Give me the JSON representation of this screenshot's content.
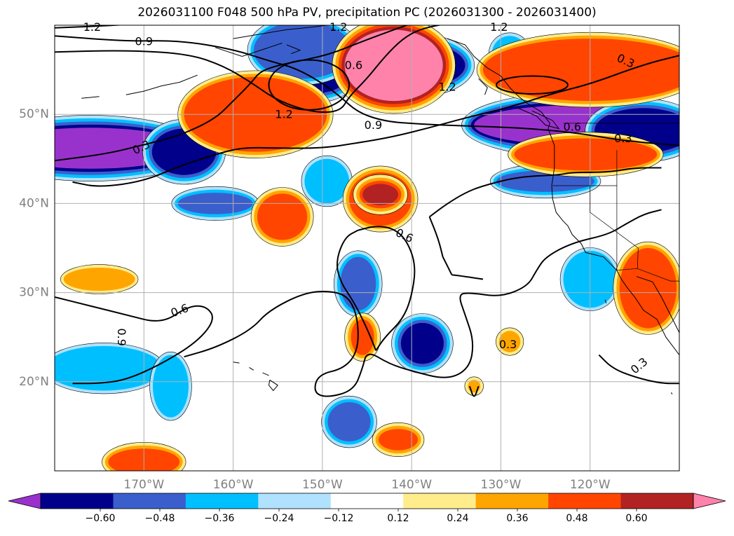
{
  "title": "2026031100 F048 500 hPa PV, precipitation PC (2026031300 - 2026031400)",
  "map": {
    "lat_range": [
      10,
      60
    ],
    "lon_range": [
      -180,
      -110
    ],
    "lat_ticks": [
      {
        "value": 50,
        "label": "50°N"
      },
      {
        "value": 40,
        "label": "40°N"
      },
      {
        "value": 30,
        "label": "30°N"
      },
      {
        "value": 20,
        "label": "20°N"
      }
    ],
    "lon_ticks": [
      {
        "value": -170,
        "label": "170°W"
      },
      {
        "value": -160,
        "label": "160°W"
      },
      {
        "value": -150,
        "label": "150°W"
      },
      {
        "value": -140,
        "label": "140°W"
      },
      {
        "value": -130,
        "label": "130°W"
      },
      {
        "value": -120,
        "label": "120°W"
      }
    ]
  },
  "contour_labels": [
    {
      "text": "1.2",
      "lon": -175.8,
      "lat": 59.8,
      "angle": 0
    },
    {
      "text": "0.9",
      "lon": -170.0,
      "lat": 58.2,
      "angle": 0
    },
    {
      "text": "0.6",
      "lon": -146.5,
      "lat": 55.5,
      "angle": 0
    },
    {
      "text": "1.2",
      "lon": -148.2,
      "lat": 59.8,
      "angle": 0
    },
    {
      "text": "1.2",
      "lon": -154.3,
      "lat": 50.0,
      "angle": 0
    },
    {
      "text": "0.9",
      "lon": -144.3,
      "lat": 48.8,
      "angle": 0
    },
    {
      "text": "1.2",
      "lon": -136.0,
      "lat": 53.1,
      "angle": 0
    },
    {
      "text": "1.2",
      "lon": -130.2,
      "lat": 59.8,
      "angle": 0
    },
    {
      "text": "0.3",
      "lon": -116.0,
      "lat": 56.0,
      "angle": 25
    },
    {
      "text": "0.6",
      "lon": -122.0,
      "lat": 48.6,
      "angle": 0
    },
    {
      "text": "0.3",
      "lon": -116.3,
      "lat": 47.3,
      "angle": 0
    },
    {
      "text": "0.3",
      "lon": -170.3,
      "lat": 46.3,
      "angle": -25
    },
    {
      "text": "0.6",
      "lon": -140.8,
      "lat": 36.4,
      "angle": 25
    },
    {
      "text": "0.6",
      "lon": -166.0,
      "lat": 28.0,
      "angle": -20
    },
    {
      "text": "0.9",
      "lon": -172.5,
      "lat": 25.0,
      "angle": 90
    },
    {
      "text": "0.3",
      "lon": -129.2,
      "lat": 24.2,
      "angle": 0
    },
    {
      "text": "0.3",
      "lon": -114.5,
      "lat": 21.8,
      "angle": -40
    }
  ],
  "precip_fill": [
    {
      "lon": -176,
      "lat": 46.2,
      "rx": 11,
      "ry": 2.3,
      "level": -0.6
    },
    {
      "lon": -165.5,
      "lat": 45.8,
      "rx": 3.6,
      "ry": 2.6,
      "level": -0.48
    },
    {
      "lon": -150.5,
      "lat": 55.2,
      "rx": 3.8,
      "ry": 2.8,
      "level": -0.48
    },
    {
      "lon": -152.2,
      "lat": 57.2,
      "rx": 5.5,
      "ry": 3.2,
      "level": -0.36
    },
    {
      "lon": -122,
      "lat": 48.8,
      "rx": 11,
      "ry": 2.2,
      "level": -0.6
    },
    {
      "lon": -114,
      "lat": 48.2,
      "rx": 5.5,
      "ry": 2.5,
      "level": -0.48
    },
    {
      "lon": -125,
      "lat": 42.5,
      "rx": 5.5,
      "ry": 1.2,
      "level": -0.36
    },
    {
      "lon": -162,
      "lat": 40.0,
      "rx": 4.2,
      "ry": 1.2,
      "level": -0.36
    },
    {
      "lon": -138.8,
      "lat": 24.3,
      "rx": 2.4,
      "ry": 2.3,
      "level": -0.48
    },
    {
      "lon": -146.0,
      "lat": 31.0,
      "rx": 2.0,
      "ry": 3.0,
      "level": -0.36
    },
    {
      "lon": -174.5,
      "lat": 21.5,
      "rx": 6.5,
      "ry": 2.5,
      "level": -0.24
    },
    {
      "lon": -167.0,
      "lat": 19.5,
      "rx": 2.0,
      "ry": 3.5,
      "level": -0.24
    },
    {
      "lon": -147.0,
      "lat": 15.5,
      "rx": 2.4,
      "ry": 2.2,
      "level": -0.36
    },
    {
      "lon": -120.0,
      "lat": 31.5,
      "rx": 3.0,
      "ry": 3.2,
      "level": -0.24
    },
    {
      "lon": -149.5,
      "lat": 42.5,
      "rx": 2.5,
      "ry": 2.5,
      "level": -0.24
    },
    {
      "lon": -139.5,
      "lat": 55.5,
      "rx": 5.5,
      "ry": 2.5,
      "level": -0.48
    },
    {
      "lon": -129.0,
      "lat": 56.8,
      "rx": 2.0,
      "ry": 2.0,
      "level": -0.24
    },
    {
      "lon": -142.0,
      "lat": 55.5,
      "rx": 5.5,
      "ry": 4.0,
      "level": 0.6
    },
    {
      "lon": -156.0,
      "lat": 48.5,
      "rx": 2.8,
      "ry": 1.8,
      "level": 0.6
    },
    {
      "lon": -157.5,
      "lat": 50.0,
      "rx": 8.0,
      "ry": 4.2,
      "level": 0.36
    },
    {
      "lon": -120.0,
      "lat": 55.0,
      "rx": 12.0,
      "ry": 3.5,
      "level": 0.36
    },
    {
      "lon": -120.5,
      "lat": 45.5,
      "rx": 8.0,
      "ry": 1.8,
      "level": 0.36
    },
    {
      "lon": -143.5,
      "lat": 40.5,
      "rx": 3.5,
      "ry": 3.0,
      "level": 0.36
    },
    {
      "lon": -143.5,
      "lat": 41.0,
      "rx": 2.0,
      "ry": 1.2,
      "level": 0.48
    },
    {
      "lon": -154.5,
      "lat": 38.5,
      "rx": 2.8,
      "ry": 2.6,
      "level": 0.36
    },
    {
      "lon": -113.5,
      "lat": 30.5,
      "rx": 3.2,
      "ry": 4.5,
      "level": 0.36
    },
    {
      "lon": -145.5,
      "lat": 25.0,
      "rx": 1.3,
      "ry": 2.0,
      "level": 0.36
    },
    {
      "lon": -141.5,
      "lat": 13.5,
      "rx": 2.2,
      "ry": 1.2,
      "level": 0.36
    },
    {
      "lon": -170.0,
      "lat": 11.0,
      "rx": 4.0,
      "ry": 1.5,
      "level": 0.36
    },
    {
      "lon": -175.0,
      "lat": 31.5,
      "rx": 4.0,
      "ry": 1.3,
      "level": 0.24
    },
    {
      "lon": -129.0,
      "lat": 24.5,
      "rx": 1.2,
      "ry": 1.2,
      "level": 0.24
    },
    {
      "lon": -133.0,
      "lat": 19.5,
      "rx": 0.7,
      "ry": 0.7,
      "level": 0.24
    }
  ],
  "colorbar": {
    "levels": [
      -0.6,
      -0.48,
      -0.36,
      -0.24,
      -0.12,
      0.12,
      0.24,
      0.36,
      0.48,
      0.6
    ],
    "labels": [
      "−0.60",
      "−0.48",
      "−0.36",
      "−0.24",
      "−0.12",
      "0.12",
      "0.24",
      "0.36",
      "0.48",
      "0.60"
    ],
    "colors": [
      "#9932CC",
      "#00008B",
      "#3A5FCD",
      "#00BFFF",
      "#B0E2FF",
      "#FFFFFF",
      "#FFEC8B",
      "#FFA500",
      "#FF4500",
      "#B22222",
      "#FF82AB"
    ]
  }
}
